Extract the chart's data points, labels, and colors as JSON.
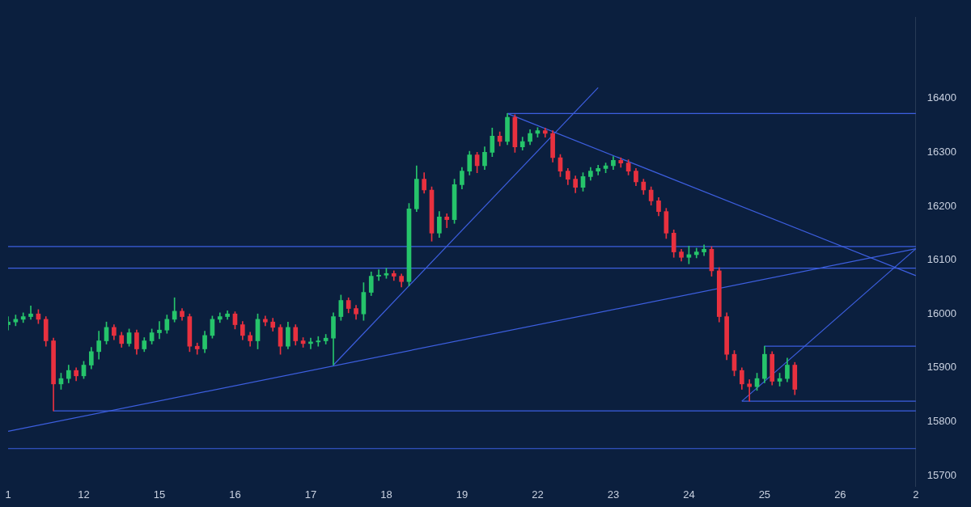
{
  "chart_data": {
    "type": "candlestick",
    "categories": [
      "1",
      null,
      null,
      null,
      null,
      null,
      null,
      null,
      null,
      null,
      "12",
      null,
      null,
      null,
      null,
      null,
      null,
      null,
      null,
      null,
      "15",
      null,
      null,
      null,
      null,
      null,
      null,
      null,
      null,
      null,
      "16",
      null,
      null,
      null,
      null,
      null,
      null,
      null,
      null,
      null,
      "17",
      null,
      null,
      null,
      null,
      null,
      null,
      null,
      null,
      null,
      "18",
      null,
      null,
      null,
      null,
      null,
      null,
      null,
      null,
      null,
      "19",
      null,
      null,
      null,
      null,
      null,
      null,
      null,
      null,
      null,
      "22",
      null,
      null,
      null,
      null,
      null,
      null,
      null,
      null,
      null,
      "23",
      null,
      null,
      null,
      null,
      null,
      null,
      null,
      null,
      null,
      "24",
      null,
      null,
      null,
      null,
      null,
      null,
      null,
      null,
      null,
      "25",
      null,
      null,
      null,
      null,
      null,
      null,
      null,
      null,
      null,
      "26",
      null,
      null,
      null,
      null,
      null,
      null,
      null,
      null,
      null,
      "2"
    ],
    "ohlc": [
      [
        15980,
        15995,
        15970,
        15985
      ],
      [
        15985,
        15998,
        15978,
        15990
      ],
      [
        15990,
        16002,
        15984,
        15995
      ],
      [
        15995,
        16015,
        15990,
        16000
      ],
      [
        16000,
        16008,
        15982,
        15990
      ],
      [
        15990,
        15995,
        15940,
        15950
      ],
      [
        15950,
        15955,
        15820,
        15870
      ],
      [
        15870,
        15890,
        15860,
        15880
      ],
      [
        15880,
        15905,
        15872,
        15895
      ],
      [
        15895,
        15900,
        15876,
        15885
      ],
      [
        15885,
        15912,
        15880,
        15905
      ],
      [
        15905,
        15938,
        15898,
        15930
      ],
      [
        15930,
        15968,
        15916,
        15950
      ],
      [
        15950,
        15985,
        15944,
        15975
      ],
      [
        15975,
        15980,
        15952,
        15960
      ],
      [
        15960,
        15966,
        15938,
        15945
      ],
      [
        15945,
        15972,
        15940,
        15965
      ],
      [
        15965,
        15970,
        15925,
        15935
      ],
      [
        15935,
        15956,
        15930,
        15950
      ],
      [
        15950,
        15972,
        15944,
        15965
      ],
      [
        15965,
        15986,
        15954,
        15970
      ],
      [
        15970,
        15998,
        15964,
        15990
      ],
      [
        15990,
        16030,
        15985,
        16005
      ],
      [
        16005,
        16010,
        15988,
        15995
      ],
      [
        15995,
        16000,
        15930,
        15940
      ],
      [
        15940,
        15946,
        15925,
        15935
      ],
      [
        15935,
        15968,
        15928,
        15960
      ],
      [
        15960,
        15996,
        15955,
        15990
      ],
      [
        15990,
        16002,
        15984,
        15995
      ],
      [
        15995,
        16006,
        15990,
        16000
      ],
      [
        16000,
        16004,
        15972,
        15980
      ],
      [
        15980,
        15986,
        15952,
        15960
      ],
      [
        15960,
        15966,
        15940,
        15950
      ],
      [
        15950,
        16000,
        15935,
        15990
      ],
      [
        15990,
        15996,
        15978,
        15985
      ],
      [
        15985,
        15992,
        15968,
        15975
      ],
      [
        15975,
        15980,
        15925,
        15940
      ],
      [
        15940,
        15985,
        15935,
        15975
      ],
      [
        15975,
        15980,
        15942,
        15950
      ],
      [
        15950,
        15956,
        15938,
        15945
      ],
      [
        15945,
        15955,
        15935,
        15948
      ],
      [
        15948,
        15958,
        15940,
        15950
      ],
      [
        15950,
        15962,
        15944,
        15955
      ],
      [
        15955,
        16002,
        15905,
        15995
      ],
      [
        15995,
        16035,
        15988,
        16025
      ],
      [
        16025,
        16030,
        16002,
        16010
      ],
      [
        16010,
        16016,
        15990,
        16000
      ],
      [
        16000,
        16058,
        15988,
        16040
      ],
      [
        16040,
        16078,
        16034,
        16070
      ],
      [
        16070,
        16082,
        16062,
        16072
      ],
      [
        16072,
        16085,
        16066,
        16075
      ],
      [
        16075,
        16080,
        16062,
        16070
      ],
      [
        16070,
        16074,
        16050,
        16060
      ],
      [
        16060,
        16205,
        16052,
        16195
      ],
      [
        16195,
        16275,
        16190,
        16250
      ],
      [
        16250,
        16262,
        16224,
        16230
      ],
      [
        16230,
        16236,
        16135,
        16150
      ],
      [
        16150,
        16190,
        16142,
        16180
      ],
      [
        16180,
        16186,
        16160,
        16175
      ],
      [
        16175,
        16250,
        16168,
        16240
      ],
      [
        16240,
        16272,
        16232,
        16265
      ],
      [
        16265,
        16302,
        16258,
        16295
      ],
      [
        16295,
        16300,
        16262,
        16275
      ],
      [
        16275,
        16310,
        16268,
        16300
      ],
      [
        16300,
        16345,
        16292,
        16330
      ],
      [
        16330,
        16338,
        16312,
        16320
      ],
      [
        16320,
        16372,
        16314,
        16365
      ],
      [
        16365,
        16370,
        16300,
        16310
      ],
      [
        16310,
        16328,
        16304,
        16320
      ],
      [
        16320,
        16342,
        16314,
        16335
      ],
      [
        16335,
        16346,
        16328,
        16340
      ],
      [
        16340,
        16345,
        16328,
        16335
      ],
      [
        16335,
        16340,
        16282,
        16290
      ],
      [
        16290,
        16296,
        16255,
        16265
      ],
      [
        16265,
        16270,
        16240,
        16250
      ],
      [
        16250,
        16256,
        16225,
        16235
      ],
      [
        16235,
        16262,
        16228,
        16255
      ],
      [
        16255,
        16272,
        16248,
        16265
      ],
      [
        16265,
        16276,
        16258,
        16270
      ],
      [
        16270,
        16280,
        16262,
        16275
      ],
      [
        16275,
        16292,
        16268,
        16285
      ],
      [
        16285,
        16290,
        16272,
        16280
      ],
      [
        16280,
        16286,
        16258,
        16265
      ],
      [
        16265,
        16270,
        16238,
        16245
      ],
      [
        16245,
        16250,
        16222,
        16230
      ],
      [
        16230,
        16236,
        16202,
        16210
      ],
      [
        16210,
        16216,
        16182,
        16190
      ],
      [
        16190,
        16196,
        16140,
        16150
      ],
      [
        16150,
        16156,
        16105,
        16115
      ],
      [
        16115,
        16120,
        16098,
        16105
      ],
      [
        16105,
        16126,
        16093,
        16110
      ],
      [
        16110,
        16122,
        16104,
        16115
      ],
      [
        16115,
        16128,
        16108,
        16120
      ],
      [
        16120,
        16125,
        16070,
        16080
      ],
      [
        16080,
        16086,
        15985,
        15995
      ],
      [
        15995,
        16002,
        15915,
        15925
      ],
      [
        15925,
        15932,
        15885,
        15895
      ],
      [
        15895,
        15900,
        15860,
        15870
      ],
      [
        15870,
        15878,
        15838,
        15865
      ],
      [
        15865,
        15890,
        15858,
        15880
      ],
      [
        15880,
        15940,
        15872,
        15925
      ],
      [
        15925,
        15930,
        15868,
        15875
      ],
      [
        15875,
        15890,
        15866,
        15880
      ],
      [
        15880,
        15918,
        15874,
        15905
      ],
      [
        15905,
        15910,
        15850,
        15860
      ],
      null,
      null,
      null,
      null,
      null,
      null,
      null,
      null,
      null,
      null,
      null,
      null,
      null,
      null,
      null,
      null
    ],
    "colors": [
      "#26c46b",
      "#26c46b",
      "#26c46b",
      "#26c46b",
      "#e8313f",
      "#e8313f",
      "#e8313f",
      "#26c46b",
      "#26c46b",
      "#e8313f",
      "#26c46b",
      "#26c46b",
      "#26c46b",
      "#26c46b",
      "#e8313f",
      "#e8313f",
      "#26c46b",
      "#e8313f",
      "#26c46b",
      "#26c46b",
      "#26c46b",
      "#26c46b",
      "#26c46b",
      "#e8313f",
      "#e8313f",
      "#e8313f",
      "#26c46b",
      "#26c46b",
      "#26c46b",
      "#26c46b",
      "#e8313f",
      "#e8313f",
      "#e8313f",
      "#26c46b",
      "#e8313f",
      "#e8313f",
      "#e8313f",
      "#26c46b",
      "#e8313f",
      "#e8313f",
      "#26c46b",
      "#26c46b",
      "#26c46b",
      "#26c46b",
      "#26c46b",
      "#e8313f",
      "#e8313f",
      "#26c46b",
      "#26c46b",
      "#26c46b",
      "#26c46b",
      "#e8313f",
      "#e8313f",
      "#26c46b",
      "#26c46b",
      "#e8313f",
      "#e8313f",
      "#26c46b",
      "#e8313f",
      "#26c46b",
      "#26c46b",
      "#26c46b",
      "#e8313f",
      "#26c46b",
      "#26c46b",
      "#e8313f",
      "#26c46b",
      "#e8313f",
      "#26c46b",
      "#26c46b",
      "#26c46b",
      "#e8313f",
      "#e8313f",
      "#e8313f",
      "#e8313f",
      "#e8313f",
      "#26c46b",
      "#26c46b",
      "#26c46b",
      "#26c46b",
      "#26c46b",
      "#e8313f",
      "#e8313f",
      "#e8313f",
      "#e8313f",
      "#e8313f",
      "#e8313f",
      "#e8313f",
      "#e8313f",
      "#e8313f",
      "#26c46b",
      "#26c46b",
      "#26c46b",
      "#e8313f",
      "#e8313f",
      "#e8313f",
      "#e8313f",
      "#e8313f",
      "#e8313f",
      "#26c46b",
      "#26c46b",
      "#e8313f",
      "#26c46b",
      "#26c46b",
      "#e8313f",
      null,
      null,
      null,
      null,
      null,
      null,
      null,
      null,
      null,
      null,
      null,
      null,
      null,
      null,
      null,
      null
    ],
    "series": [
      {
        "type": "line",
        "color": "#3d5fe0",
        "values": [
          15782,
          null,
          null,
          null,
          null,
          null,
          null,
          null,
          null,
          null,
          null,
          null,
          null,
          null,
          null,
          null,
          null,
          null,
          null,
          null,
          null,
          null,
          null,
          null,
          null,
          null,
          null,
          null,
          null,
          null,
          null,
          null,
          null,
          null,
          null,
          null,
          null,
          null,
          null,
          null,
          null,
          null,
          null,
          null,
          null,
          null,
          null,
          null,
          null,
          null,
          null,
          null,
          null,
          null,
          null,
          null,
          null,
          null,
          null,
          null,
          null,
          null,
          null,
          null,
          null,
          null,
          null,
          null,
          null,
          null,
          null,
          null,
          null,
          null,
          null,
          null,
          null,
          null,
          null,
          null,
          null,
          null,
          null,
          null,
          null,
          null,
          null,
          null,
          null,
          null,
          null,
          null,
          null,
          null,
          null,
          null,
          null,
          null,
          null,
          null,
          null,
          null,
          null,
          null,
          null,
          null,
          null,
          null,
          null,
          null,
          null,
          null,
          null,
          null,
          null,
          null,
          null,
          null,
          null,
          null,
          16121
        ]
      },
      {
        "type": "line",
        "color": "#3d5fe0",
        "values": [
          null,
          null,
          null,
          null,
          null,
          null,
          null,
          null,
          null,
          null,
          null,
          null,
          null,
          null,
          null,
          null,
          null,
          null,
          null,
          null,
          null,
          null,
          null,
          null,
          null,
          null,
          null,
          null,
          null,
          null,
          null,
          null,
          null,
          null,
          null,
          null,
          null,
          null,
          null,
          null,
          null,
          null,
          null,
          15905,
          null,
          null,
          null,
          null,
          null,
          null,
          null,
          null,
          null,
          null,
          null,
          null,
          null,
          null,
          null,
          null,
          null,
          null,
          null,
          null,
          null,
          null,
          null,
          null,
          null,
          null,
          null,
          null,
          null,
          null,
          null,
          null,
          null,
          null,
          16420,
          null,
          null,
          null,
          null,
          null,
          null,
          null,
          null,
          null,
          null,
          null,
          null,
          null,
          null,
          null,
          null,
          null,
          null,
          null,
          null,
          null,
          null,
          null,
          null,
          null,
          null,
          null,
          null,
          null,
          null,
          null,
          null,
          null,
          null,
          null,
          null,
          null,
          null,
          null,
          null,
          null,
          null
        ]
      },
      {
        "type": "line",
        "color": "#3d5fe0",
        "values": [
          null,
          null,
          null,
          null,
          null,
          null,
          null,
          null,
          null,
          null,
          null,
          null,
          null,
          null,
          null,
          null,
          null,
          null,
          null,
          null,
          null,
          null,
          null,
          null,
          null,
          null,
          null,
          null,
          null,
          null,
          null,
          null,
          null,
          null,
          null,
          null,
          null,
          null,
          null,
          null,
          null,
          null,
          null,
          null,
          null,
          null,
          null,
          null,
          null,
          null,
          null,
          null,
          null,
          null,
          null,
          null,
          null,
          null,
          null,
          null,
          null,
          null,
          null,
          null,
          null,
          null,
          16372,
          null,
          null,
          null,
          null,
          null,
          null,
          null,
          null,
          null,
          null,
          null,
          null,
          null,
          null,
          null,
          null,
          null,
          null,
          null,
          null,
          null,
          null,
          null,
          null,
          null,
          null,
          null,
          null,
          null,
          null,
          null,
          null,
          null,
          null,
          null,
          null,
          null,
          null,
          null,
          null,
          null,
          null,
          null,
          null,
          null,
          null,
          null,
          null,
          null,
          null,
          null,
          null,
          null,
          16071
        ]
      },
      {
        "type": "line",
        "color": "#3d5fe0",
        "values": [
          null,
          null,
          null,
          null,
          null,
          null,
          null,
          null,
          null,
          null,
          null,
          null,
          null,
          null,
          null,
          null,
          null,
          null,
          null,
          null,
          null,
          null,
          null,
          null,
          null,
          null,
          null,
          null,
          null,
          null,
          null,
          null,
          null,
          null,
          null,
          null,
          null,
          null,
          null,
          null,
          null,
          null,
          null,
          null,
          null,
          null,
          null,
          null,
          null,
          null,
          null,
          null,
          null,
          null,
          null,
          null,
          null,
          null,
          null,
          null,
          null,
          null,
          null,
          null,
          null,
          null,
          null,
          null,
          null,
          null,
          null,
          null,
          null,
          null,
          null,
          null,
          null,
          null,
          null,
          null,
          null,
          null,
          null,
          null,
          null,
          null,
          null,
          null,
          null,
          null,
          null,
          null,
          null,
          null,
          null,
          null,
          null,
          15838,
          null,
          null,
          null,
          null,
          null,
          null,
          null,
          null,
          null,
          null,
          null,
          null,
          null,
          null,
          null,
          null,
          null,
          null,
          null,
          null,
          null,
          null,
          16121
        ]
      },
      {
        "type": "line",
        "color": "#3d5fe0",
        "values": [
          null,
          null,
          null,
          null,
          null,
          null,
          15820,
          null,
          null,
          null,
          null,
          null,
          null,
          null,
          null,
          null,
          null,
          null,
          null,
          null,
          null,
          null,
          null,
          null,
          null,
          null,
          null,
          null,
          null,
          null,
          null,
          null,
          null,
          null,
          null,
          null,
          null,
          null,
          null,
          null,
          null,
          null,
          null,
          null,
          null,
          null,
          null,
          null,
          null,
          null,
          null,
          null,
          null,
          null,
          null,
          null,
          null,
          null,
          null,
          null,
          null,
          null,
          null,
          null,
          null,
          null,
          null,
          null,
          null,
          null,
          null,
          null,
          null,
          null,
          null,
          null,
          null,
          null,
          null,
          null,
          null,
          null,
          null,
          null,
          null,
          null,
          null,
          null,
          null,
          null,
          null,
          null,
          null,
          null,
          null,
          null,
          null,
          null,
          null,
          null,
          null,
          null,
          null,
          null,
          null,
          null,
          null,
          null,
          null,
          null,
          null,
          null,
          null,
          null,
          null,
          null,
          null,
          null,
          null,
          null,
          15820
        ]
      },
      {
        "type": "line",
        "color": "#3d5fe0",
        "values": [
          null,
          null,
          null,
          null,
          null,
          null,
          null,
          null,
          null,
          null,
          null,
          null,
          null,
          null,
          null,
          null,
          null,
          null,
          null,
          null,
          null,
          null,
          null,
          null,
          null,
          null,
          null,
          null,
          null,
          null,
          null,
          null,
          null,
          null,
          null,
          null,
          null,
          null,
          null,
          null,
          null,
          null,
          null,
          null,
          null,
          null,
          null,
          null,
          null,
          null,
          null,
          null,
          null,
          null,
          null,
          null,
          null,
          null,
          null,
          null,
          null,
          null,
          null,
          null,
          null,
          null,
          null,
          null,
          null,
          null,
          null,
          null,
          null,
          null,
          null,
          null,
          null,
          null,
          null,
          null,
          null,
          null,
          null,
          null,
          null,
          null,
          null,
          null,
          null,
          null,
          null,
          null,
          null,
          null,
          null,
          null,
          null,
          15838,
          null,
          null,
          null,
          null,
          null,
          null,
          null,
          null,
          null,
          null,
          null,
          null,
          null,
          null,
          null,
          null,
          null,
          null,
          null,
          null,
          null,
          null,
          15838
        ]
      },
      {
        "type": "line",
        "color": "#3d5fe0",
        "values": [
          null,
          null,
          null,
          null,
          null,
          null,
          null,
          null,
          null,
          null,
          null,
          null,
          null,
          null,
          null,
          null,
          null,
          null,
          null,
          null,
          null,
          null,
          null,
          null,
          null,
          null,
          null,
          null,
          null,
          null,
          null,
          null,
          null,
          null,
          null,
          null,
          null,
          null,
          null,
          null,
          null,
          null,
          null,
          null,
          null,
          null,
          null,
          null,
          null,
          null,
          null,
          null,
          null,
          null,
          null,
          null,
          null,
          null,
          null,
          null,
          null,
          null,
          null,
          null,
          null,
          null,
          null,
          null,
          null,
          null,
          null,
          null,
          null,
          null,
          null,
          null,
          null,
          null,
          null,
          null,
          null,
          null,
          null,
          null,
          null,
          null,
          null,
          null,
          null,
          null,
          null,
          null,
          null,
          null,
          null,
          null,
          null,
          null,
          null,
          null,
          15940,
          null,
          null,
          null,
          null,
          null,
          null,
          null,
          null,
          null,
          null,
          null,
          null,
          null,
          null,
          null,
          null,
          null,
          null,
          null,
          15940
        ]
      },
      {
        "type": "line",
        "color": "#3d5fe0",
        "values": [
          null,
          null,
          null,
          null,
          null,
          null,
          null,
          null,
          null,
          null,
          null,
          null,
          null,
          null,
          null,
          null,
          null,
          null,
          null,
          null,
          null,
          null,
          null,
          null,
          null,
          null,
          null,
          null,
          null,
          null,
          null,
          null,
          null,
          null,
          null,
          null,
          null,
          null,
          null,
          null,
          null,
          null,
          null,
          null,
          null,
          null,
          null,
          null,
          null,
          null,
          null,
          null,
          null,
          null,
          null,
          null,
          null,
          null,
          null,
          null,
          null,
          null,
          null,
          null,
          null,
          null,
          16372,
          null,
          null,
          null,
          null,
          null,
          null,
          null,
          null,
          null,
          null,
          null,
          null,
          null,
          null,
          null,
          null,
          null,
          null,
          null,
          null,
          null,
          null,
          null,
          null,
          null,
          null,
          null,
          null,
          null,
          null,
          null,
          null,
          null,
          null,
          null,
          null,
          null,
          null,
          null,
          null,
          null,
          null,
          null,
          null,
          null,
          null,
          null,
          null,
          null,
          null,
          null,
          null,
          null,
          16372
        ]
      }
    ],
    "ref_lines": [
      {
        "axis": "y",
        "value": 16125,
        "color": "#3d5fe0"
      },
      {
        "axis": "y",
        "value": 16085,
        "color": "#3d5fe0"
      },
      {
        "axis": "y",
        "value": 15750,
        "color": "#3d5fe0"
      }
    ],
    "ylim": [
      15680,
      16550
    ],
    "yticks": [
      15700,
      15800,
      15900,
      16000,
      16100,
      16200,
      16300,
      16400
    ],
    "legend": false
  }
}
